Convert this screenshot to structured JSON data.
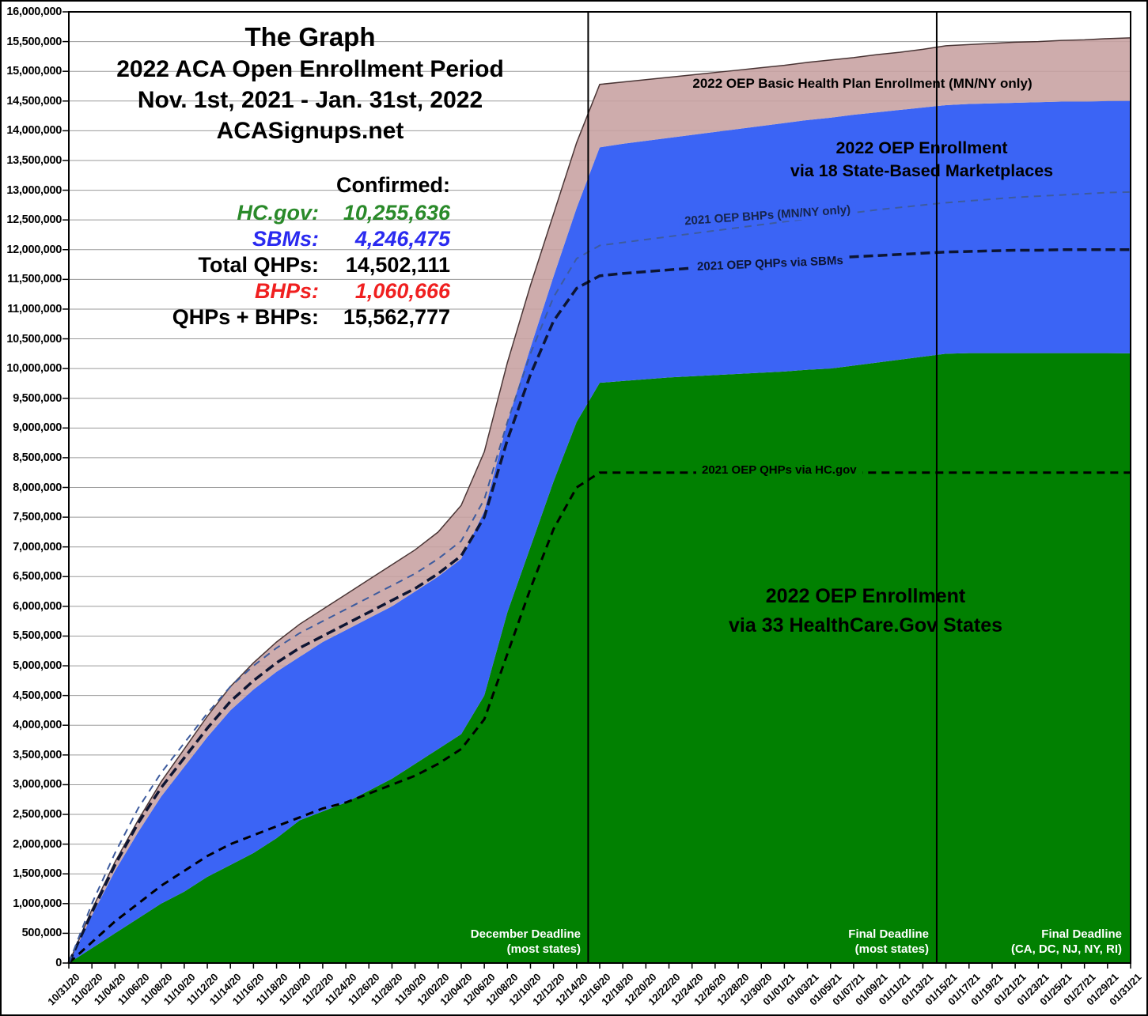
{
  "title": {
    "line1": "The Graph",
    "line2": "2022 ACA Open Enrollment Period",
    "line3": "Nov. 1st, 2021 - Jan. 31st, 2022",
    "line4": "ACASignups.net"
  },
  "stats": {
    "heading": "Confirmed:",
    "rows": [
      {
        "label": "HC.gov:",
        "value": "10,255,636",
        "color": "#2a8a2a",
        "italic": true
      },
      {
        "label": "SBMs:",
        "value": "4,246,475",
        "color": "#2a2af0",
        "italic": true
      },
      {
        "label": "Total QHPs:",
        "value": "14,502,111",
        "color": "#000000",
        "italic": false
      },
      {
        "label": "BHPs:",
        "value": "1,060,666",
        "color": "#f02020",
        "italic": true
      },
      {
        "label": "QHPs + BHPs:",
        "value": "15,562,777",
        "color": "#000000",
        "italic": false
      }
    ]
  },
  "chart_data": {
    "type": "area",
    "title": "2022 ACA Open Enrollment Period (Nov. 1st, 2021 - Jan. 31st, 2022)",
    "units": "cumulative enrollees, values in millions",
    "ylim": [
      0,
      16
    ],
    "y_tick_step": 0.5,
    "y_unit_multiplier": 1000000,
    "grid": "horizontal",
    "legend_position": "in-plot annotations",
    "x_dates": [
      "10/31/20",
      "11/02/20",
      "11/04/20",
      "11/06/20",
      "11/08/20",
      "11/10/20",
      "11/12/20",
      "11/14/20",
      "11/16/20",
      "11/18/20",
      "11/20/20",
      "11/22/20",
      "11/24/20",
      "11/26/20",
      "11/28/20",
      "11/30/20",
      "12/02/20",
      "12/04/20",
      "12/06/20",
      "12/08/20",
      "12/10/20",
      "12/12/20",
      "12/14/20",
      "12/16/20",
      "12/18/20",
      "12/20/20",
      "12/22/20",
      "12/24/20",
      "12/26/20",
      "12/28/20",
      "12/30/20",
      "01/01/21",
      "01/03/21",
      "01/05/21",
      "01/07/21",
      "01/09/21",
      "01/11/21",
      "01/13/21",
      "01/15/21",
      "01/17/21",
      "01/19/21",
      "01/21/21",
      "01/23/21",
      "01/25/21",
      "01/27/21",
      "01/29/21",
      "01/31/21"
    ],
    "series": [
      {
        "id": "hcgov2022",
        "name": "2022 OEP Enrollment via 33 HealthCare.Gov States",
        "render": "stacked_area_top",
        "color": "#018001",
        "values": [
          0,
          0.25,
          0.5,
          0.75,
          1.0,
          1.2,
          1.45,
          1.65,
          1.85,
          2.1,
          2.4,
          2.55,
          2.7,
          2.9,
          3.1,
          3.35,
          3.6,
          3.85,
          4.5,
          5.9,
          7.0,
          8.1,
          9.1,
          9.76,
          9.79,
          9.82,
          9.85,
          9.87,
          9.89,
          9.91,
          9.93,
          9.95,
          9.98,
          10.0,
          10.05,
          10.1,
          10.15,
          10.2,
          10.25,
          10.26,
          10.26,
          10.26,
          10.26,
          10.26,
          10.26,
          10.26,
          10.256
        ]
      },
      {
        "id": "qhps2022",
        "name": "2022 OEP Enrollment via 18 State-Based Marketplaces",
        "render": "stacked_area_top",
        "color": "#3b64f5",
        "values": [
          0,
          0.8,
          1.55,
          2.2,
          2.8,
          3.3,
          3.8,
          4.25,
          4.6,
          4.9,
          5.15,
          5.4,
          5.6,
          5.8,
          6.0,
          6.25,
          6.5,
          6.8,
          7.6,
          9.1,
          10.35,
          11.55,
          12.7,
          13.72,
          13.78,
          13.83,
          13.88,
          13.93,
          13.98,
          14.03,
          14.08,
          14.13,
          14.18,
          14.22,
          14.27,
          14.31,
          14.35,
          14.39,
          14.43,
          14.45,
          14.46,
          14.47,
          14.48,
          14.49,
          14.49,
          14.5,
          14.502
        ]
      },
      {
        "id": "bhps2022",
        "name": "2022 OEP Basic Health Plan Enrollment (MN/NY only)",
        "render": "stacked_area_top",
        "color": "#c7a0a0",
        "top_stroke": "#4a3535",
        "values": [
          0,
          0.9,
          1.7,
          2.4,
          3.05,
          3.6,
          4.15,
          4.65,
          5.05,
          5.4,
          5.7,
          5.95,
          6.2,
          6.45,
          6.7,
          6.95,
          7.25,
          7.7,
          8.6,
          10.1,
          11.4,
          12.6,
          13.8,
          14.78,
          14.82,
          14.86,
          14.9,
          14.94,
          14.98,
          15.02,
          15.06,
          15.1,
          15.15,
          15.19,
          15.23,
          15.28,
          15.32,
          15.37,
          15.43,
          15.45,
          15.47,
          15.49,
          15.5,
          15.52,
          15.53,
          15.55,
          15.563
        ]
      },
      {
        "id": "hcgov2021",
        "name": "2021 OEP QHPs via HC.gov",
        "render": "dashed_line",
        "color": "#000000",
        "width": 3,
        "dash": "10 7",
        "values": [
          0,
          0.35,
          0.7,
          1.0,
          1.3,
          1.55,
          1.8,
          2.0,
          2.15,
          2.3,
          2.45,
          2.6,
          2.7,
          2.85,
          3.0,
          3.15,
          3.35,
          3.6,
          4.1,
          5.2,
          6.3,
          7.3,
          8.0,
          8.25,
          8.25,
          8.25,
          8.25,
          8.25,
          8.25,
          8.25,
          8.25,
          8.25,
          8.25,
          8.25,
          8.25,
          8.25,
          8.25,
          8.25,
          8.25,
          8.25,
          8.25,
          8.25,
          8.25,
          8.25,
          8.25,
          8.25,
          8.25
        ]
      },
      {
        "id": "qhpsbm2021",
        "name": "2021 OEP QHPs via SBMs",
        "render": "dashed_line",
        "color": "#0d1533",
        "width": 3.5,
        "dash": "12 6",
        "values": [
          0,
          0.85,
          1.65,
          2.35,
          2.95,
          3.45,
          3.95,
          4.4,
          4.75,
          5.05,
          5.3,
          5.5,
          5.7,
          5.9,
          6.1,
          6.3,
          6.55,
          6.85,
          7.5,
          8.8,
          9.9,
          10.8,
          11.35,
          11.56,
          11.6,
          11.63,
          11.66,
          11.69,
          11.72,
          11.75,
          11.78,
          11.81,
          11.84,
          11.86,
          11.88,
          11.9,
          11.92,
          11.94,
          11.96,
          11.97,
          11.98,
          11.99,
          11.99,
          12.0,
          12.0,
          12.0,
          12.0
        ]
      },
      {
        "id": "bhp2021",
        "name": "2021 OEP BHPs (MN/NY only)",
        "render": "dashed_line",
        "color": "#3d5b9e",
        "width": 2,
        "dash": "9 7",
        "values": [
          0,
          1.0,
          1.85,
          2.6,
          3.2,
          3.7,
          4.2,
          4.65,
          5.0,
          5.3,
          5.55,
          5.75,
          5.95,
          6.15,
          6.35,
          6.55,
          6.8,
          7.1,
          7.8,
          9.1,
          10.25,
          11.2,
          11.85,
          12.07,
          12.12,
          12.17,
          12.22,
          12.27,
          12.32,
          12.37,
          12.42,
          12.47,
          12.52,
          12.57,
          12.62,
          12.67,
          12.71,
          12.75,
          12.79,
          12.82,
          12.85,
          12.88,
          12.9,
          12.92,
          12.94,
          12.96,
          12.97
        ]
      }
    ],
    "deadlines": [
      {
        "index": 22.5,
        "line1": "December Deadline",
        "line2": "(most states)",
        "draw_line": true
      },
      {
        "index": 37.6,
        "line1": "Final Deadline",
        "line2": "(most states)",
        "draw_line": true
      },
      {
        "index": 46,
        "line1": "Final Deadline",
        "line2": "(CA, DC, NJ, NY, RI)",
        "draw_line": false
      }
    ],
    "annotations": {
      "bhp_band": {
        "text": "2022 OEP Basic Health Plan Enrollment (MN/NY only)"
      },
      "sbm_area": {
        "lines": [
          "2022 OEP Enrollment",
          "via 18 State-Based Marketplaces"
        ]
      },
      "hcgov_area": {
        "lines": [
          "2022 OEP Enrollment",
          "via 33 HealthCare.Gov States"
        ]
      },
      "bhp2021_line": {
        "text": "2021 OEP BHPs (MN/NY only)",
        "color": "#16254d"
      },
      "qhpsbm2021_line": {
        "text": "2021 OEP QHPs via SBMs",
        "color": "#0d1533"
      },
      "hcgov2021_line": {
        "text": "2021 OEP QHPs via HC.gov",
        "color": "#000000"
      }
    },
    "colors": {
      "gridline": "#9a9a9a",
      "axis": "#000000",
      "deadline_line": "#000000"
    }
  }
}
